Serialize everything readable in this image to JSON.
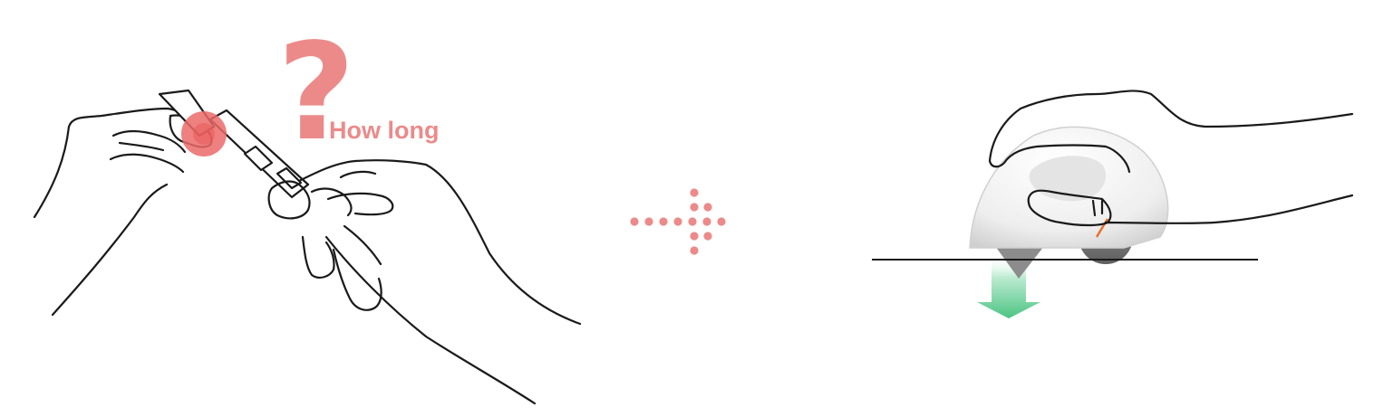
{
  "left_scene": {
    "question_mark": "?",
    "caption": "How long"
  },
  "colors": {
    "accent": "#ec8a8a",
    "arrow_green": "#4cc583",
    "outline": "#1a1a1a"
  }
}
